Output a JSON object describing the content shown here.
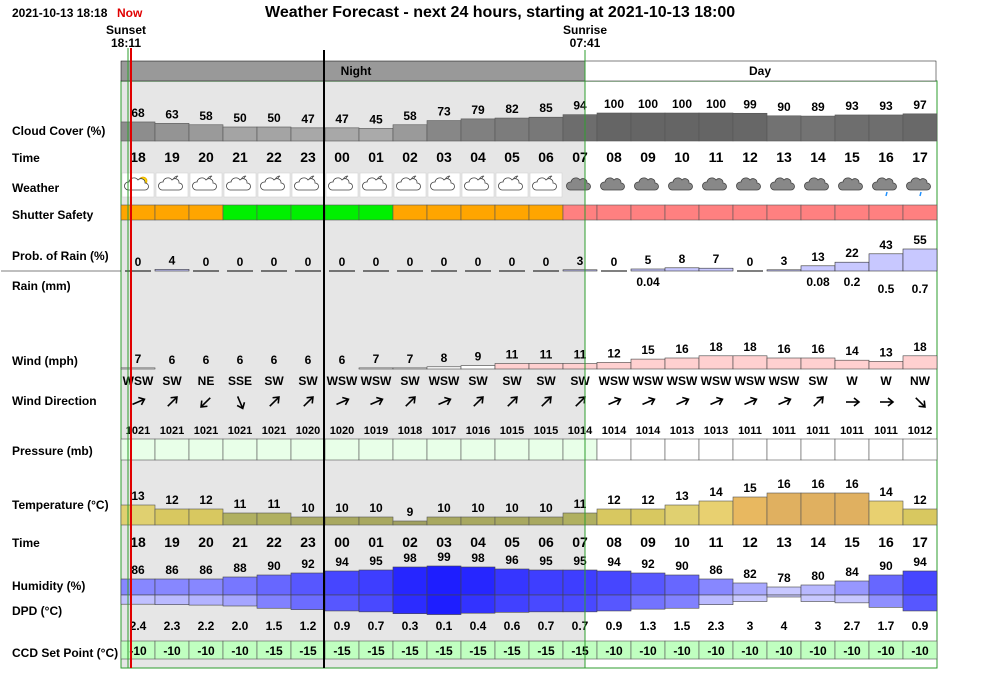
{
  "header": {
    "timestamp": "2021-10-13 18:18",
    "now_label": "Now",
    "title": "Weather Forecast - next 24 hours, starting at 2021-10-13 18:00",
    "sunset_label": "Sunset",
    "sunset_time": "18:11",
    "sunrise_label": "Sunrise",
    "sunrise_time": "07:41",
    "night_label": "Night",
    "day_label": "Day"
  },
  "labels": {
    "cloud": "Cloud Cover (%)",
    "time": "Time",
    "weather": "Weather",
    "shutter": "Shutter Safety",
    "prob": "Prob. of Rain (%)",
    "rain": "Rain (mm)",
    "wind": "Wind (mph)",
    "winddir": "Wind Direction",
    "pressure": "Pressure (mb)",
    "temp": "Temperature (°C)",
    "time2": "Time",
    "humidity": "Humidity (%)",
    "dpd": "DPD (°C)",
    "ccd": "CCD Set Point (°C)"
  },
  "chart_data": {
    "type": "table",
    "hours": [
      "18",
      "19",
      "20",
      "21",
      "22",
      "23",
      "00",
      "01",
      "02",
      "03",
      "04",
      "05",
      "06",
      "07",
      "08",
      "09",
      "10",
      "11",
      "12",
      "13",
      "14",
      "15",
      "16",
      "17"
    ],
    "cloud_cover": [
      68,
      63,
      58,
      50,
      50,
      47,
      47,
      45,
      58,
      73,
      79,
      82,
      85,
      94,
      100,
      100,
      100,
      100,
      99,
      90,
      89,
      93,
      93,
      97
    ],
    "weather_icons": [
      "partly-cloudy-day",
      "partly-cloudy-night",
      "partly-cloudy-night",
      "partly-cloudy-night",
      "partly-cloudy-night",
      "partly-cloudy-night",
      "partly-cloudy-night",
      "partly-cloudy-night",
      "partly-cloudy-night",
      "partly-cloudy-night",
      "partly-cloudy-night",
      "partly-cloudy-night",
      "partly-cloudy-night",
      "cloudy",
      "cloudy",
      "cloudy",
      "cloudy",
      "cloudy",
      "cloudy",
      "cloudy",
      "cloudy",
      "cloudy",
      "light-rain",
      "light-rain"
    ],
    "shutter_safety": [
      "caution",
      "caution",
      "caution",
      "safe",
      "safe",
      "safe",
      "safe",
      "safe",
      "caution",
      "caution",
      "caution",
      "caution",
      "caution",
      "unsafe",
      "unsafe",
      "unsafe",
      "unsafe",
      "unsafe",
      "unsafe",
      "unsafe",
      "unsafe",
      "unsafe",
      "unsafe",
      "unsafe"
    ],
    "shutter_colors": {
      "safe": "#00f000",
      "caution": "#ffa500",
      "unsafe": "#ff8080"
    },
    "prob_rain": [
      0,
      4,
      0,
      0,
      0,
      0,
      0,
      0,
      0,
      0,
      0,
      0,
      0,
      3,
      0,
      5,
      8,
      7,
      0,
      3,
      13,
      22,
      43,
      55
    ],
    "rain_mm": [
      "",
      "",
      "",
      "",
      "",
      "",
      "",
      "",
      "",
      "",
      "",
      "",
      "",
      "",
      "",
      "0.04",
      "",
      "",
      "",
      "",
      "0.08",
      "0.2",
      "0.5",
      "0.7"
    ],
    "wind_mph": [
      7,
      6,
      6,
      6,
      6,
      6,
      6,
      7,
      7,
      8,
      9,
      11,
      11,
      11,
      12,
      15,
      16,
      18,
      18,
      16,
      16,
      14,
      13,
      18
    ],
    "wind_dir": [
      "WSW",
      "SW",
      "NE",
      "SSE",
      "SW",
      "SW",
      "WSW",
      "WSW",
      "SW",
      "WSW",
      "SW",
      "SW",
      "SW",
      "SW",
      "WSW",
      "WSW",
      "WSW",
      "WSW",
      "WSW",
      "WSW",
      "SW",
      "W",
      "W",
      "NW"
    ],
    "wind_arrow_deg": [
      67,
      45,
      225,
      157,
      45,
      45,
      67,
      67,
      45,
      67,
      45,
      45,
      45,
      45,
      67,
      67,
      67,
      67,
      67,
      67,
      45,
      90,
      90,
      135
    ],
    "pressure_mb": [
      1021,
      1021,
      1021,
      1021,
      1021,
      1020,
      1020,
      1019,
      1018,
      1017,
      1016,
      1015,
      1015,
      1014,
      1014,
      1014,
      1013,
      1013,
      1011,
      1011,
      1011,
      1011,
      1011,
      1012
    ],
    "temperature_c": [
      13,
      12,
      12,
      11,
      11,
      10,
      10,
      10,
      9,
      10,
      10,
      10,
      10,
      11,
      12,
      12,
      13,
      14,
      15,
      16,
      16,
      16,
      14,
      12
    ],
    "humidity_pct": [
      86,
      86,
      86,
      88,
      90,
      92,
      94,
      95,
      98,
      99,
      98,
      96,
      95,
      95,
      94,
      92,
      90,
      86,
      82,
      78,
      80,
      84,
      90,
      94
    ],
    "dpd_c": [
      "2.4",
      "2.3",
      "2.2",
      "2.0",
      "1.5",
      "1.2",
      "0.9",
      "0.7",
      "0.3",
      "0.1",
      "0.4",
      "0.6",
      "0.7",
      "0.7",
      "0.9",
      "1.3",
      "1.5",
      "2.3",
      "3",
      "4",
      "3",
      "2.7",
      "1.7",
      "0.9"
    ],
    "ccd_set_point_c": [
      -10,
      -10,
      -10,
      -10,
      -15,
      -15,
      -15,
      -15,
      -15,
      -15,
      -15,
      -15,
      -15,
      -15,
      -10,
      -10,
      -10,
      -10,
      -10,
      -10,
      -10,
      -10,
      -10,
      -10
    ]
  }
}
